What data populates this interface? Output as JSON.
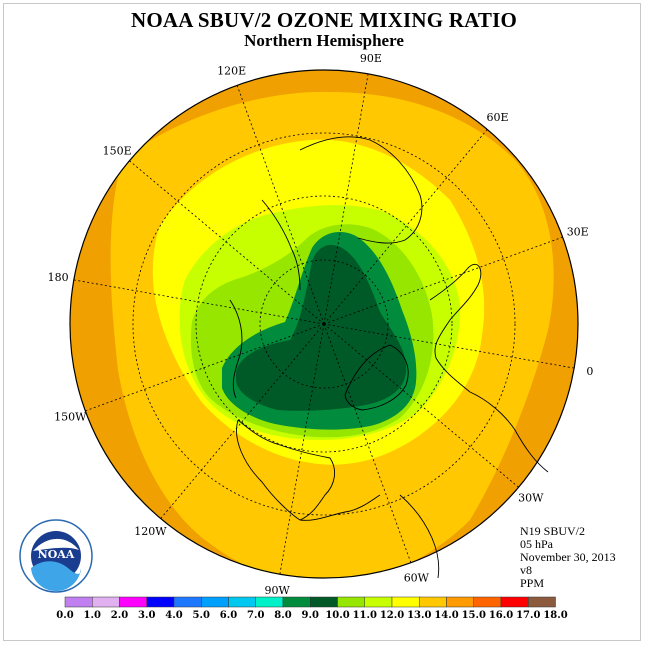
{
  "title": "NOAA SBUV/2 OZONE MIXING RATIO",
  "subtitle": "Northern Hemisphere",
  "longitude_labels": [
    "90E",
    "60E",
    "30E",
    "0",
    "30W",
    "60W",
    "90W",
    "120W",
    "150W",
    "180",
    "150E",
    "120E"
  ],
  "info": {
    "satellite": "N19 SBUV/2",
    "level": "05 hPa",
    "date": "November 30, 2013",
    "version": "v8",
    "units": "PPM"
  },
  "logo_text": "NOAA",
  "colorbar": {
    "colors": [
      "#c080f0",
      "#e0b0f0",
      "#ff00ff",
      "#0000ff",
      "#1e78ff",
      "#00a0ff",
      "#00c8f0",
      "#00f0c8",
      "#008c3c",
      "#005a28",
      "#96e600",
      "#c8ff00",
      "#ffff00",
      "#ffc800",
      "#ff9b00",
      "#ff6400",
      "#ff0000",
      "#8c5a3c"
    ],
    "tick_labels": [
      "0.0",
      "1.0",
      "2.0",
      "3.0",
      "4.0",
      "5.0",
      "6.0",
      "7.0",
      "8.0",
      "9.0",
      "10.0",
      "11.0",
      "12.0",
      "13.0",
      "14.0",
      "15.0",
      "16.0",
      "17.0",
      "18.0"
    ]
  },
  "map_colors": {
    "orange": "#f0a000",
    "gold": "#ffc800",
    "yellow": "#ffff00",
    "yellow_green": "#c8ff00",
    "light_green": "#96e600",
    "green": "#008c3c",
    "dark_green": "#005a28"
  }
}
